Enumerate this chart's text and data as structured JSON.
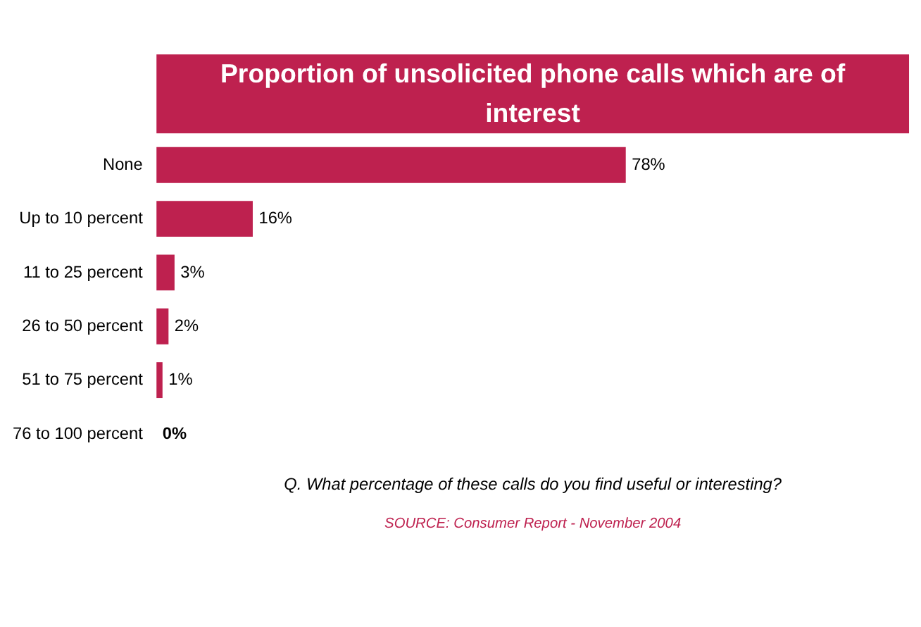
{
  "chart_data": {
    "type": "bar",
    "orientation": "horizontal",
    "title": "Proportion of unsolicited phone calls which are of interest",
    "categories": [
      "None",
      "Up to 10 percent",
      "11 to 25 percent",
      "26 to 50 percent",
      "51 to 75 percent",
      "76 to 100 percent"
    ],
    "values": [
      78,
      16,
      3,
      2,
      1,
      0
    ],
    "value_labels": [
      "78%",
      "16%",
      "3%",
      "2%",
      "1%",
      "0%"
    ],
    "color": "#be214f",
    "grid": false,
    "annotations": [
      "Q. What percentage of these calls do you find useful or interesting?",
      "SOURCE: Consumer Report - November 2004"
    ]
  }
}
